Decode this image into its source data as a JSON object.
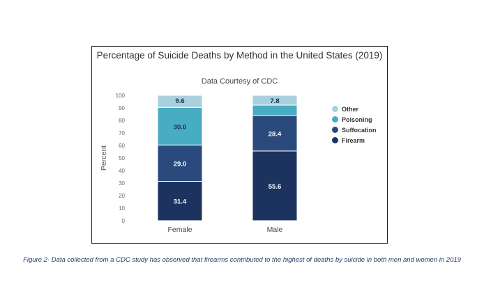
{
  "chart_data": {
    "type": "bar",
    "stacked": true,
    "title": "Percentage of Suicide Deaths by Method in the United States (2019)",
    "subtitle": "Data Courtesy of CDC",
    "xlabel": "",
    "ylabel": "Percent",
    "ylim": [
      0,
      100
    ],
    "yticks": [
      0,
      10,
      20,
      30,
      40,
      50,
      60,
      70,
      80,
      90,
      100
    ],
    "categories": [
      "Female",
      "Male"
    ],
    "series": [
      {
        "name": "Firearm",
        "color": "#1c3360",
        "label_color": "#ffffff",
        "values": [
          31.4,
          55.6
        ],
        "labels": [
          "31.4",
          "55.6"
        ]
      },
      {
        "name": "Suffocation",
        "color": "#2a4a7e",
        "label_color": "#ffffff",
        "values": [
          29.0,
          28.4
        ],
        "labels": [
          "29.0",
          "28.4"
        ]
      },
      {
        "name": "Poisoning",
        "color": "#48adc3",
        "label_color": "#1c2f55",
        "values": [
          30.0,
          8.2
        ],
        "labels": [
          "30.0",
          ""
        ]
      },
      {
        "name": "Other",
        "color": "#a9d0de",
        "label_color": "#1c2f55",
        "values": [
          9.6,
          7.8
        ],
        "labels": [
          "9.6",
          "7.8"
        ]
      }
    ],
    "legend_order": [
      "Other",
      "Poisoning",
      "Suffocation",
      "Firearm"
    ],
    "legend_position": "right"
  },
  "caption": "Figure 2- Data collected from a CDC study has observed that firearms contributed to the highest of deaths by suicide in both men and women in 2019"
}
